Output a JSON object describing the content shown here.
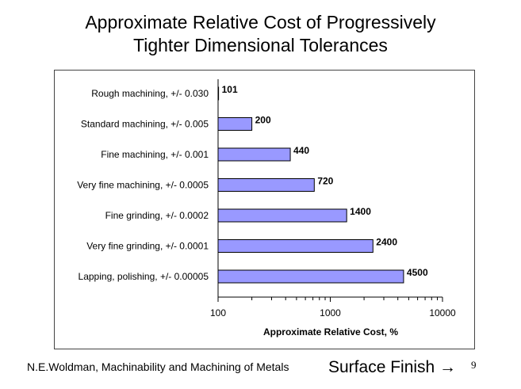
{
  "slide": {
    "title_line1": "Approximate Relative Cost of Progressively",
    "title_line2": "Tighter Dimensional Tolerances",
    "source": "N.E.Woldman, Machinability and Machining of Metals",
    "footer_link": "Surface Finish →",
    "page_number": "9"
  },
  "colors": {
    "bar_fill": "#9999ff",
    "bar_stroke": "#000000",
    "frame": "#444444"
  },
  "chart_data": {
    "type": "bar",
    "orientation": "horizontal",
    "title": "",
    "xlabel": "Approximate Relative Cost, %",
    "ylabel": "",
    "x_scale": "log",
    "xlim": [
      100,
      10000
    ],
    "x_ticks": [
      "100",
      "1000",
      "10000"
    ],
    "grid": false,
    "categories": [
      "Rough machining, +/- 0.030",
      "Standard machining, +/- 0.005",
      "Fine machining, +/- 0.001",
      "Very fine machining, +/- 0.0005",
      "Fine grinding, +/- 0.0002",
      "Very fine grinding, +/- 0.0001",
      "Lapping, polishing, +/- 0.00005"
    ],
    "values": [
      101,
      200,
      440,
      720,
      1400,
      2400,
      4500
    ]
  }
}
